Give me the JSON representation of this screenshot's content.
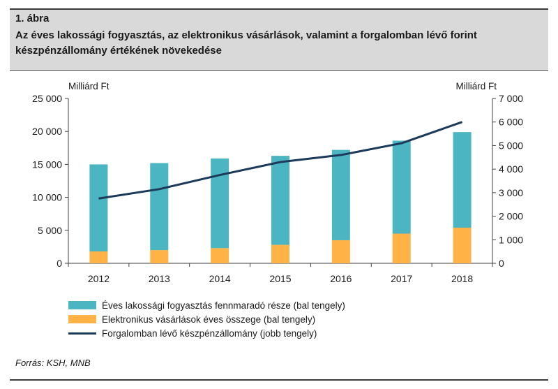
{
  "figure": {
    "label": "1. ábra",
    "title": "Az éves lakossági fogyasztás, az elektronikus vásárlások, valamint a forgalomban lévő forint készpénzállomány értékének növekedése",
    "source": "Forrás: KSH, MNB"
  },
  "chart_data": {
    "type": "bar",
    "categories": [
      "2012",
      "2013",
      "2014",
      "2015",
      "2016",
      "2017",
      "2018"
    ],
    "left_axis_unit": "Milliárd Ft",
    "right_axis_unit": "Milliárd Ft",
    "left_ylim": [
      0,
      25000
    ],
    "right_ylim": [
      0,
      7000
    ],
    "left_ticks": [
      "0",
      "5 000",
      "10 000",
      "15 000",
      "20 000",
      "25 000"
    ],
    "right_ticks": [
      "0",
      "1 000",
      "2 000",
      "3 000",
      "4 000",
      "5 000",
      "6 000",
      "7 000"
    ],
    "grid": false,
    "legend_position": "bottom",
    "series": [
      {
        "name": "Éves lakossági fogyasztás fennmaradó része (bal tengely)",
        "kind": "stacked-bar",
        "axis": "left",
        "color": "#4bb5c1",
        "values": [
          13200,
          13200,
          13600,
          13500,
          13700,
          14100,
          14500
        ]
      },
      {
        "name": "Elektronikus vásárlások éves összege (bal tengely)",
        "kind": "stacked-bar",
        "axis": "left",
        "color": "#ffb347",
        "values": [
          1800,
          2000,
          2300,
          2800,
          3500,
          4500,
          5400
        ]
      },
      {
        "name": "Forgalomban lévő készpénzállomány (jobb tengely)",
        "kind": "line",
        "axis": "right",
        "color": "#1c3a5a",
        "values": [
          2750,
          3150,
          3750,
          4300,
          4600,
          5100,
          6000
        ]
      }
    ]
  }
}
